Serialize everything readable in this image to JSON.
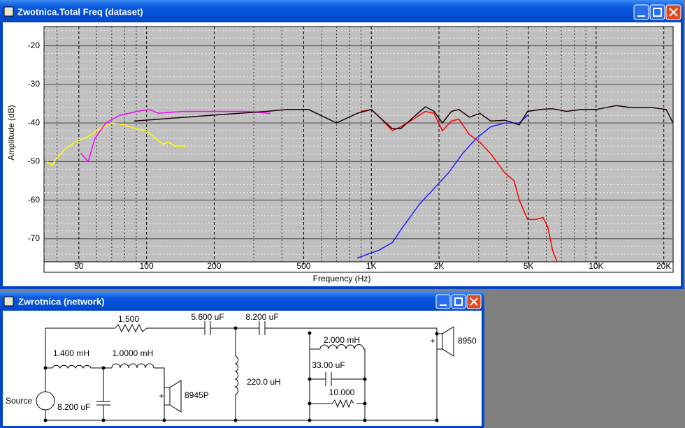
{
  "windows": [
    {
      "title": "Zwotnica.Total Freq (dataset)"
    },
    {
      "title": "Zwrotnica (network)"
    }
  ],
  "chart_data": {
    "type": "line",
    "x_label": "Frequency (Hz)",
    "y_label": "Amplitude (dB)",
    "xlog": true,
    "grid": true,
    "xlim": [
      35,
      22000
    ],
    "ylim": [
      -76,
      -15
    ],
    "xticks": [
      50,
      100,
      200,
      500,
      {
        "value": 1000,
        "label": "1K"
      },
      {
        "value": 2000,
        "label": "2K"
      },
      {
        "value": 5000,
        "label": "5K"
      },
      {
        "value": 10000,
        "label": "10K"
      },
      {
        "value": 20000,
        "label": "20K"
      }
    ],
    "x_minor_grid": [
      40,
      60,
      70,
      80,
      90,
      300,
      400,
      600,
      700,
      800,
      900,
      3000,
      4000,
      6000,
      7000,
      8000,
      9000
    ],
    "yticks": [
      -70,
      -60,
      -50,
      -40,
      -30,
      -20
    ],
    "y_minor_grid": [
      -74,
      -72,
      -68,
      -66,
      -64,
      -62,
      -58,
      -56,
      -54,
      -52,
      -48,
      -46,
      -44,
      -42,
      -38,
      -36,
      -34,
      -32,
      -28,
      -26,
      -24,
      -22,
      -18,
      -16
    ],
    "series": [
      {
        "color": "#ffff00",
        "x": [
          36,
          38,
          40,
          43,
          48,
          55,
          62,
          70,
          80,
          90,
          100,
          110,
          118,
          125,
          135,
          150
        ],
        "values": [
          -50,
          -51,
          -49,
          -47,
          -45,
          -43.5,
          -41.5,
          -40,
          -40.5,
          -41.5,
          -42,
          -44,
          -45.5,
          -45,
          -46,
          -46
        ]
      },
      {
        "color": "#ff00ff",
        "x": [
          51,
          55,
          59,
          66,
          76,
          91,
          103,
          113,
          145,
          194,
          275,
          355
        ],
        "values": [
          -47.8,
          -50,
          -44,
          -40,
          -38,
          -37,
          -36.5,
          -37.5,
          -37,
          -37,
          -37,
          -37.5
        ]
      },
      {
        "color": "#2020ff",
        "x": [
          866,
          1080,
          1240,
          1380,
          1640,
          1900,
          2200,
          2540,
          2930,
          3400,
          3930,
          4550,
          4960
        ],
        "values": [
          -75,
          -73,
          -71,
          -67,
          -61,
          -57,
          -53,
          -48,
          -44,
          -41,
          -40,
          -40,
          -38
        ]
      },
      {
        "color": "#ff0000",
        "x": [
          900,
          1000,
          1110,
          1240,
          1350,
          1540,
          1740,
          1900,
          2070,
          2270,
          2450,
          2730,
          3040,
          3400,
          3930,
          4320,
          4550,
          4960,
          5400,
          5800,
          6100,
          6400,
          6700
        ],
        "values": [
          -37,
          -36.5,
          -39,
          -42,
          -41,
          -39,
          -37,
          -37.5,
          -42,
          -39.5,
          -39,
          -43,
          -45,
          -48,
          -53,
          -55,
          -60,
          -65,
          -65,
          -64.5,
          -67,
          -73,
          -76
        ]
      },
      {
        "color": "#1a0000",
        "x": [
          88,
          194,
          342,
          424,
          525,
          700,
          866,
          1000,
          1110,
          1240,
          1350,
          1540,
          1740,
          1900,
          2070,
          2270,
          2450,
          2730,
          3040,
          3400,
          3930,
          4550,
          4960,
          5660,
          6390,
          7380,
          8560,
          10000,
          12300,
          14200,
          17700,
          20500,
          22000
        ],
        "values": [
          -39.5,
          -38,
          -37,
          -36.5,
          -36.5,
          -40,
          -37.5,
          -36.5,
          -39,
          -41.5,
          -41.5,
          -38.5,
          -35.8,
          -37,
          -40,
          -37,
          -36.5,
          -38.5,
          -37.5,
          -39.5,
          -39.3,
          -40.5,
          -37,
          -36.5,
          -36.3,
          -37,
          -36.5,
          -36.5,
          -35.5,
          -36,
          -36,
          -36.5,
          -40
        ]
      }
    ]
  },
  "network": {
    "r1": "1.500",
    "c1": "5.600 uF",
    "c2": "8.200 uF",
    "l1": "1.400 mH",
    "l2": "1.0000 mH",
    "l3": "220.0 uH",
    "l4": "2.000 mH",
    "c4": "33.00 uF",
    "r2": "10.000",
    "source": "Source",
    "c3": "8.200 uF",
    "spk1": "8945P",
    "spk2": "8950",
    "plus1": "+",
    "plus2": "+"
  }
}
